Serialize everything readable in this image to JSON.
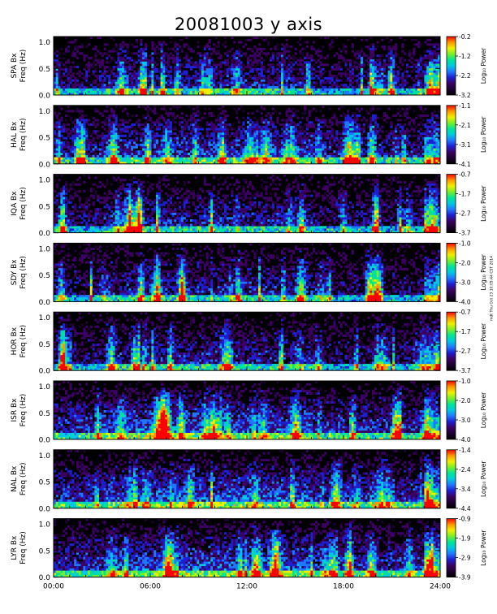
{
  "chart_data": [
    {
      "type": "heatmap",
      "station": "SPA Bx",
      "ylabel_line1": "SPA Bx",
      "ylabel_line2": "Freq (Hz)",
      "yticks": [
        "1.0",
        "0.5",
        "0.0"
      ],
      "ylim": [
        0,
        1.1
      ],
      "colorbar_label": "Log₁₀ Power",
      "colorbar_ticks": [
        "-0.2",
        "-1.2",
        "-2.2",
        "-3.2"
      ],
      "zlim": [
        -3.2,
        -0.2
      ]
    },
    {
      "type": "heatmap",
      "station": "HAL Bx",
      "ylabel_line1": "HAL Bx",
      "ylabel_line2": "Freq (Hz)",
      "yticks": [
        "1.0",
        "0.5",
        "0.0"
      ],
      "ylim": [
        0,
        1.1
      ],
      "colorbar_label": "Log₁₀ Power",
      "colorbar_ticks": [
        "-1.1",
        "-2.1",
        "-3.1",
        "-4.1"
      ],
      "zlim": [
        -4.1,
        -1.1
      ]
    },
    {
      "type": "heatmap",
      "station": "IQA Bx",
      "ylabel_line1": "IQA Bx",
      "ylabel_line2": "Freq (Hz)",
      "yticks": [
        "1.0",
        "0.5",
        "0.0"
      ],
      "ylim": [
        0,
        1.1
      ],
      "colorbar_label": "Log₁₀ Power",
      "colorbar_ticks": [
        "-0.7",
        "-1.7",
        "-2.7",
        "-3.7"
      ],
      "zlim": [
        -3.7,
        -0.7
      ]
    },
    {
      "type": "heatmap",
      "station": "SDY Bx",
      "ylabel_line1": "SDY Bx",
      "ylabel_line2": "Freq (Hz)",
      "yticks": [
        "1.0",
        "0.5",
        "0.0"
      ],
      "ylim": [
        0,
        1.1
      ],
      "colorbar_label": "Log₁₀ Power",
      "colorbar_ticks": [
        "-1.0",
        "-2.0",
        "-3.0",
        "-4.0"
      ],
      "zlim": [
        -4.0,
        -1.0
      ]
    },
    {
      "type": "heatmap",
      "station": "HOR Bx",
      "ylabel_line1": "HOR Bx",
      "ylabel_line2": "Freq (Hz)",
      "yticks": [
        "1.0",
        "0.5",
        "0.0"
      ],
      "ylim": [
        0,
        1.1
      ],
      "colorbar_label": "Log₁₀ Power",
      "colorbar_ticks": [
        "-0.7",
        "-1.7",
        "-2.7",
        "-3.7"
      ],
      "zlim": [
        -3.7,
        -0.7
      ]
    },
    {
      "type": "heatmap",
      "station": "ISR Bx",
      "ylabel_line1": "ISR Bx",
      "ylabel_line2": "Freq (Hz)",
      "yticks": [
        "1.0",
        "0.5",
        "0.0"
      ],
      "ylim": [
        0,
        1.1
      ],
      "colorbar_label": "Log₁₀ Power",
      "colorbar_ticks": [
        "-1.0",
        "-2.0",
        "-3.0",
        "-4.0"
      ],
      "zlim": [
        -4.0,
        -1.0
      ]
    },
    {
      "type": "heatmap",
      "station": "NAL Bx",
      "ylabel_line1": "NAL Bx",
      "ylabel_line2": "Freq (Hz)",
      "yticks": [
        "1.0",
        "0.5",
        "0.0"
      ],
      "ylim": [
        0,
        1.1
      ],
      "colorbar_label": "Log₁₀ Power",
      "colorbar_ticks": [
        "-1.4",
        "-2.4",
        "-3.4",
        "-4.4"
      ],
      "zlim": [
        -4.4,
        -1.4
      ]
    },
    {
      "type": "heatmap",
      "station": "LYR Bx",
      "ylabel_line1": "LYR Bx",
      "ylabel_line2": "Freq (Hz)",
      "yticks": [
        "1.0",
        "0.5",
        "0.0"
      ],
      "ylim": [
        0,
        1.1
      ],
      "colorbar_label": "Log₁₀ Power",
      "colorbar_ticks": [
        "-0.9",
        "-1.9",
        "-2.9",
        "-3.9"
      ],
      "zlim": [
        -3.9,
        -0.9
      ]
    }
  ],
  "figure": {
    "title": "20081003 y axis",
    "xticks": [
      "00:00",
      "06:00",
      "12:00",
      "18:00",
      "24:00"
    ],
    "xlim_hours": [
      0,
      24
    ],
    "stamp": "mdt Thu Oct 23 10:05:44 CST 2014",
    "colormap": [
      "#000000",
      "#1e0032",
      "#3c0064",
      "#1e1ed2",
      "#1e78ff",
      "#00c8e6",
      "#00e696",
      "#78f028",
      "#f0f000",
      "#ff9600",
      "#ff0000"
    ]
  }
}
